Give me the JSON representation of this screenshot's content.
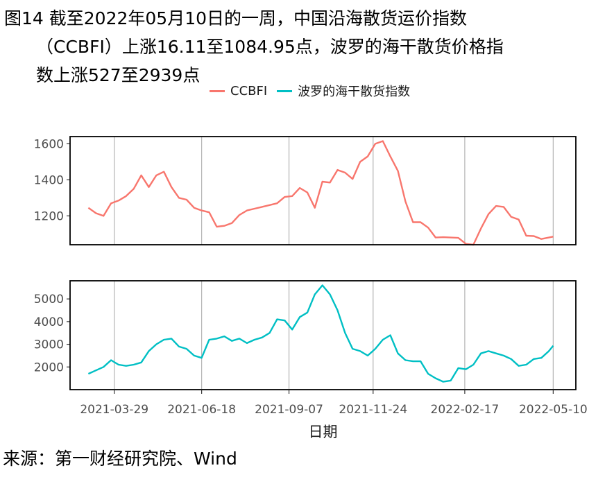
{
  "figure": {
    "title_line1": "图14  截至2022年05月10日的一周，中国沿海散货运价指数",
    "title_line2": "（CCBFI）上涨16.11至1084.95点，波罗的海干散货价格指",
    "title_line3": "数上涨527至2939点",
    "source": "来源：第一财经研究院、Wind"
  },
  "chart_data": {
    "type": "line",
    "xlabel": "日期",
    "x_ticks": [
      "2021-03-29",
      "2021-06-18",
      "2021-09-07",
      "2021-11-24",
      "2022-02-17",
      "2022-05-10"
    ],
    "x_range": [
      "2021-02-16",
      "2022-05-31"
    ],
    "grid_vertical": true,
    "legend_position": "top",
    "series": [
      {
        "name": "CCBFI",
        "color": "#F8766D",
        "ylim": [
          1040,
          1640
        ],
        "y_ticks": [
          1200,
          1400,
          1600
        ],
        "points": [
          [
            "2021-03-05",
            1245
          ],
          [
            "2021-03-12",
            1215
          ],
          [
            "2021-03-19",
            1200
          ],
          [
            "2021-03-26",
            1270
          ],
          [
            "2021-04-02",
            1285
          ],
          [
            "2021-04-09",
            1310
          ],
          [
            "2021-04-16",
            1350
          ],
          [
            "2021-04-23",
            1425
          ],
          [
            "2021-04-30",
            1360
          ],
          [
            "2021-05-07",
            1425
          ],
          [
            "2021-05-14",
            1445
          ],
          [
            "2021-05-21",
            1360
          ],
          [
            "2021-05-28",
            1300
          ],
          [
            "2021-06-04",
            1290
          ],
          [
            "2021-06-11",
            1245
          ],
          [
            "2021-06-18",
            1230
          ],
          [
            "2021-06-25",
            1220
          ],
          [
            "2021-07-02",
            1140
          ],
          [
            "2021-07-09",
            1145
          ],
          [
            "2021-07-16",
            1160
          ],
          [
            "2021-07-23",
            1205
          ],
          [
            "2021-07-30",
            1230
          ],
          [
            "2021-08-06",
            1240
          ],
          [
            "2021-08-13",
            1250
          ],
          [
            "2021-08-20",
            1260
          ],
          [
            "2021-08-27",
            1270
          ],
          [
            "2021-09-03",
            1305
          ],
          [
            "2021-09-10",
            1310
          ],
          [
            "2021-09-17",
            1355
          ],
          [
            "2021-09-24",
            1330
          ],
          [
            "2021-10-01",
            1245
          ],
          [
            "2021-10-08",
            1390
          ],
          [
            "2021-10-15",
            1385
          ],
          [
            "2021-10-22",
            1455
          ],
          [
            "2021-10-29",
            1440
          ],
          [
            "2021-11-05",
            1405
          ],
          [
            "2021-11-12",
            1500
          ],
          [
            "2021-11-19",
            1530
          ],
          [
            "2021-11-26",
            1600
          ],
          [
            "2021-12-03",
            1615
          ],
          [
            "2021-12-10",
            1530
          ],
          [
            "2021-12-17",
            1450
          ],
          [
            "2021-12-24",
            1280
          ],
          [
            "2021-12-31",
            1165
          ],
          [
            "2022-01-07",
            1165
          ],
          [
            "2022-01-14",
            1135
          ],
          [
            "2022-01-21",
            1080
          ],
          [
            "2022-01-28",
            1082
          ],
          [
            "2022-02-04",
            1080
          ],
          [
            "2022-02-11",
            1078
          ],
          [
            "2022-02-18",
            1045
          ],
          [
            "2022-02-25",
            1040
          ],
          [
            "2022-03-04",
            1130
          ],
          [
            "2022-03-11",
            1210
          ],
          [
            "2022-03-18",
            1255
          ],
          [
            "2022-03-25",
            1250
          ],
          [
            "2022-04-01",
            1195
          ],
          [
            "2022-04-08",
            1180
          ],
          [
            "2022-04-15",
            1090
          ],
          [
            "2022-04-22",
            1088
          ],
          [
            "2022-04-29",
            1072
          ],
          [
            "2022-05-06",
            1080
          ],
          [
            "2022-05-10",
            1085
          ]
        ]
      },
      {
        "name": "波罗的海干散货指数",
        "color": "#00BFC4",
        "ylim": [
          1000,
          5800
        ],
        "y_ticks": [
          2000,
          3000,
          4000,
          5000
        ],
        "points": [
          [
            "2021-03-05",
            1700
          ],
          [
            "2021-03-12",
            1850
          ],
          [
            "2021-03-19",
            2000
          ],
          [
            "2021-03-26",
            2300
          ],
          [
            "2021-04-02",
            2100
          ],
          [
            "2021-04-09",
            2050
          ],
          [
            "2021-04-16",
            2100
          ],
          [
            "2021-04-23",
            2200
          ],
          [
            "2021-04-30",
            2700
          ],
          [
            "2021-05-07",
            3000
          ],
          [
            "2021-05-14",
            3200
          ],
          [
            "2021-05-21",
            3250
          ],
          [
            "2021-05-28",
            2900
          ],
          [
            "2021-06-04",
            2800
          ],
          [
            "2021-06-11",
            2500
          ],
          [
            "2021-06-18",
            2400
          ],
          [
            "2021-06-25",
            3200
          ],
          [
            "2021-07-02",
            3250
          ],
          [
            "2021-07-09",
            3350
          ],
          [
            "2021-07-16",
            3150
          ],
          [
            "2021-07-23",
            3250
          ],
          [
            "2021-07-30",
            3050
          ],
          [
            "2021-08-06",
            3200
          ],
          [
            "2021-08-13",
            3300
          ],
          [
            "2021-08-20",
            3500
          ],
          [
            "2021-08-27",
            4100
          ],
          [
            "2021-09-03",
            4050
          ],
          [
            "2021-09-10",
            3650
          ],
          [
            "2021-09-17",
            4200
          ],
          [
            "2021-09-24",
            4400
          ],
          [
            "2021-10-01",
            5200
          ],
          [
            "2021-10-08",
            5600
          ],
          [
            "2021-10-15",
            5200
          ],
          [
            "2021-10-22",
            4500
          ],
          [
            "2021-10-29",
            3500
          ],
          [
            "2021-11-05",
            2800
          ],
          [
            "2021-11-12",
            2700
          ],
          [
            "2021-11-19",
            2500
          ],
          [
            "2021-11-26",
            2800
          ],
          [
            "2021-12-03",
            3200
          ],
          [
            "2021-12-10",
            3400
          ],
          [
            "2021-12-17",
            2600
          ],
          [
            "2021-12-24",
            2300
          ],
          [
            "2021-12-31",
            2250
          ],
          [
            "2022-01-07",
            2250
          ],
          [
            "2022-01-14",
            1700
          ],
          [
            "2022-01-21",
            1500
          ],
          [
            "2022-01-28",
            1350
          ],
          [
            "2022-02-04",
            1400
          ],
          [
            "2022-02-11",
            1950
          ],
          [
            "2022-02-18",
            1900
          ],
          [
            "2022-02-25",
            2100
          ],
          [
            "2022-03-04",
            2600
          ],
          [
            "2022-03-11",
            2700
          ],
          [
            "2022-03-18",
            2600
          ],
          [
            "2022-03-25",
            2500
          ],
          [
            "2022-04-01",
            2350
          ],
          [
            "2022-04-08",
            2050
          ],
          [
            "2022-04-15",
            2100
          ],
          [
            "2022-04-22",
            2350
          ],
          [
            "2022-04-29",
            2400
          ],
          [
            "2022-05-06",
            2700
          ],
          [
            "2022-05-10",
            2939
          ]
        ]
      }
    ]
  }
}
